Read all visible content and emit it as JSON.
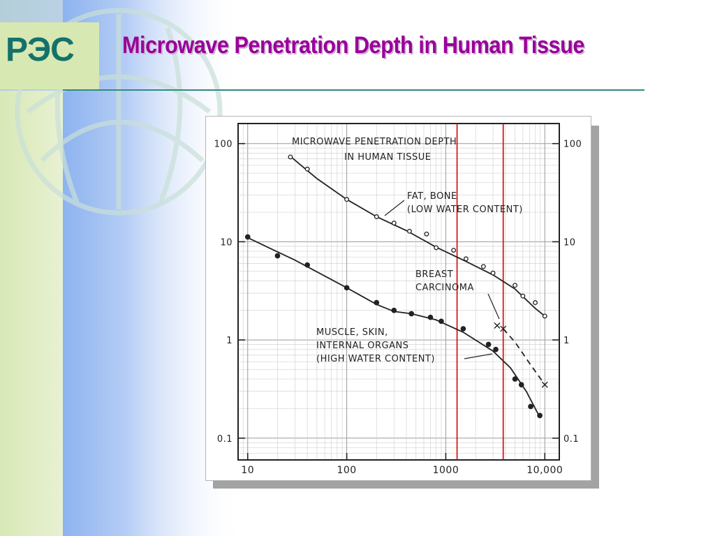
{
  "slide": {
    "logo_text": "PЭC",
    "title": "Microwave Penetration Depth in Human Tissue"
  },
  "colors": {
    "title": "#990099",
    "logo": "#13726b",
    "rule": "#2f8a85",
    "marker_lines": "#d40000",
    "ink": "#222222"
  },
  "chart_data": {
    "type": "line",
    "title_lines": [
      "MICROWAVE PENETRATION DEPTH",
      "IN HUMAN TISSUE"
    ],
    "xlabel": "",
    "ylabel": "",
    "x_scale": "log",
    "y_scale": "log",
    "xlim": [
      8,
      14000
    ],
    "ylim": [
      0.06,
      160
    ],
    "x_ticks": [
      {
        "value": 10,
        "label": "10"
      },
      {
        "value": 100,
        "label": "100"
      },
      {
        "value": 1000,
        "label": "1000"
      },
      {
        "value": 10000,
        "label": "10,000"
      }
    ],
    "y_ticks": [
      {
        "value": 100,
        "label": "100"
      },
      {
        "value": 10,
        "label": "10"
      },
      {
        "value": 1,
        "label": "1"
      },
      {
        "value": 0.1,
        "label": "0.1"
      }
    ],
    "grid": true,
    "vertical_markers": [
      1300,
      3800
    ],
    "series": [
      {
        "label_lines": [
          "FAT, BONE",
          "(LOW WATER CONTENT)"
        ],
        "line": [
          [
            27,
            74
          ],
          [
            50,
            44
          ],
          [
            100,
            27
          ],
          [
            200,
            18
          ],
          [
            400,
            13
          ],
          [
            800,
            8.8
          ],
          [
            1600,
            6.3
          ],
          [
            3000,
            4.6
          ],
          [
            5000,
            3.3
          ],
          [
            8000,
            2.1
          ],
          [
            10000,
            1.75
          ]
        ],
        "points": [
          [
            27,
            73
          ],
          [
            40,
            55
          ],
          [
            100,
            27
          ],
          [
            200,
            18
          ],
          [
            300,
            15.5
          ],
          [
            430,
            12.8
          ],
          [
            640,
            12
          ],
          [
            800,
            8.7
          ],
          [
            1200,
            8.2
          ],
          [
            1600,
            6.7
          ],
          [
            2400,
            5.6
          ],
          [
            3000,
            4.8
          ],
          [
            5000,
            3.6
          ],
          [
            6000,
            2.8
          ],
          [
            8000,
            2.4
          ],
          [
            10000,
            1.75
          ]
        ]
      },
      {
        "label_lines": [
          "MUSCLE, SKIN,",
          "INTERNAL ORGANS",
          "(HIGH WATER CONTENT)"
        ],
        "line": [
          [
            10,
            11
          ],
          [
            30,
            6.5
          ],
          [
            100,
            3.4
          ],
          [
            200,
            2.3
          ],
          [
            300,
            1.95
          ],
          [
            450,
            1.85
          ],
          [
            800,
            1.6
          ],
          [
            1500,
            1.2
          ],
          [
            3000,
            0.77
          ],
          [
            4500,
            0.52
          ],
          [
            6500,
            0.3
          ],
          [
            9000,
            0.16
          ]
        ],
        "points": [
          [
            10,
            11.2
          ],
          [
            20,
            7.2
          ],
          [
            40,
            5.8
          ],
          [
            100,
            3.4
          ],
          [
            200,
            2.4
          ],
          [
            300,
            2.0
          ],
          [
            450,
            1.85
          ],
          [
            700,
            1.7
          ],
          [
            900,
            1.55
          ],
          [
            1500,
            1.3
          ],
          [
            2700,
            0.9
          ],
          [
            3200,
            0.8
          ],
          [
            5000,
            0.4
          ],
          [
            5800,
            0.35
          ],
          [
            7200,
            0.21
          ],
          [
            8900,
            0.17
          ]
        ]
      },
      {
        "label_lines": [
          "BREAST",
          "CARCINOMA"
        ],
        "style": "dashed",
        "line": [
          [
            3800,
            1.3
          ],
          [
            5000,
            0.95
          ],
          [
            7000,
            0.58
          ],
          [
            10000,
            0.35
          ]
        ],
        "points": [
          [
            3300,
            1.4
          ],
          [
            3800,
            1.3
          ],
          [
            10000,
            0.35
          ]
        ]
      }
    ]
  }
}
